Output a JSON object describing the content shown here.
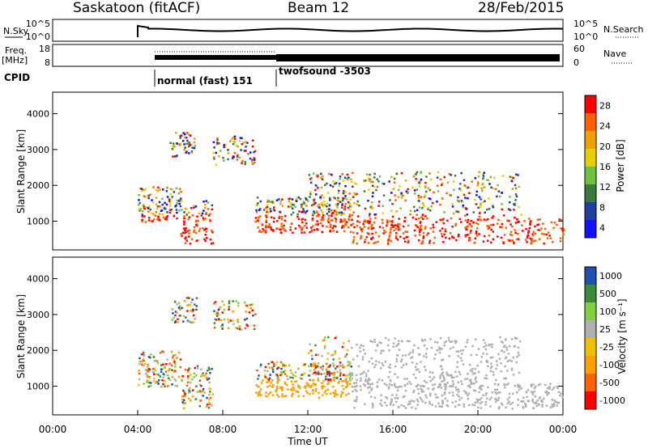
{
  "header": {
    "station": "Saskatoon (fitACF)",
    "beam": "Beam 12",
    "date": "28/Feb/2015"
  },
  "noise_panel": {
    "left_label": "N.Sky",
    "left_ticks": [
      "10^5",
      "10^0"
    ],
    "right_ticks": [
      "10^5",
      "10^0"
    ],
    "right_label": "N.Search"
  },
  "freq_panel": {
    "left_label_1": "Freq.",
    "left_label_2": "[MHz]",
    "left_ticks": [
      "18",
      "8"
    ],
    "right_ticks": [
      "60",
      "0"
    ],
    "right_label": "Nave"
  },
  "cpid": {
    "label": "CPID",
    "modes": [
      {
        "name": "normal (fast) 151",
        "start_hour": 4
      },
      {
        "name": "twofsound -3503",
        "start_hour": 10
      }
    ]
  },
  "colors": {
    "power_scale": [
      "#1010ff",
      "#2040a0",
      "#3a7a3a",
      "#70c040",
      "#e8d000",
      "#f0a000",
      "#ff6000",
      "#ff0000"
    ],
    "velocity_scale": [
      "#ff0000",
      "#ff6000",
      "#ffa000",
      "#f0c000",
      "#b0b0b0",
      "#80d040",
      "#3a8a3a",
      "#2050b0"
    ]
  },
  "chart_data": [
    {
      "type": "heatmap",
      "name": "power",
      "ylabel": "Slant Range [km]",
      "y_ticks": [
        1000,
        2000,
        3000,
        4000
      ],
      "ylim": [
        200,
        4600
      ],
      "xlim": [
        0,
        24
      ],
      "colorbar_label": "Power [dB]",
      "colorbar_ticks": [
        "28",
        "24",
        "20",
        "16",
        "12",
        "8",
        "4"
      ],
      "colorbar_range": [
        0,
        30
      ]
    },
    {
      "type": "heatmap",
      "name": "velocity",
      "ylabel": "Slant Range [km]",
      "y_ticks": [
        1000,
        2000,
        3000,
        4000
      ],
      "ylim": [
        200,
        4600
      ],
      "xlim": [
        0,
        24
      ],
      "xlabel": "Time UT",
      "x_ticks": [
        "00:00",
        "04:00",
        "08:00",
        "12:00",
        "16:00",
        "20:00",
        "00:00"
      ],
      "colorbar_label": "Velocity [m s⁻¹]",
      "colorbar_ticks": [
        "1000",
        "500",
        "100",
        "25",
        "-25",
        "-100",
        "-500",
        "-1000"
      ]
    }
  ]
}
